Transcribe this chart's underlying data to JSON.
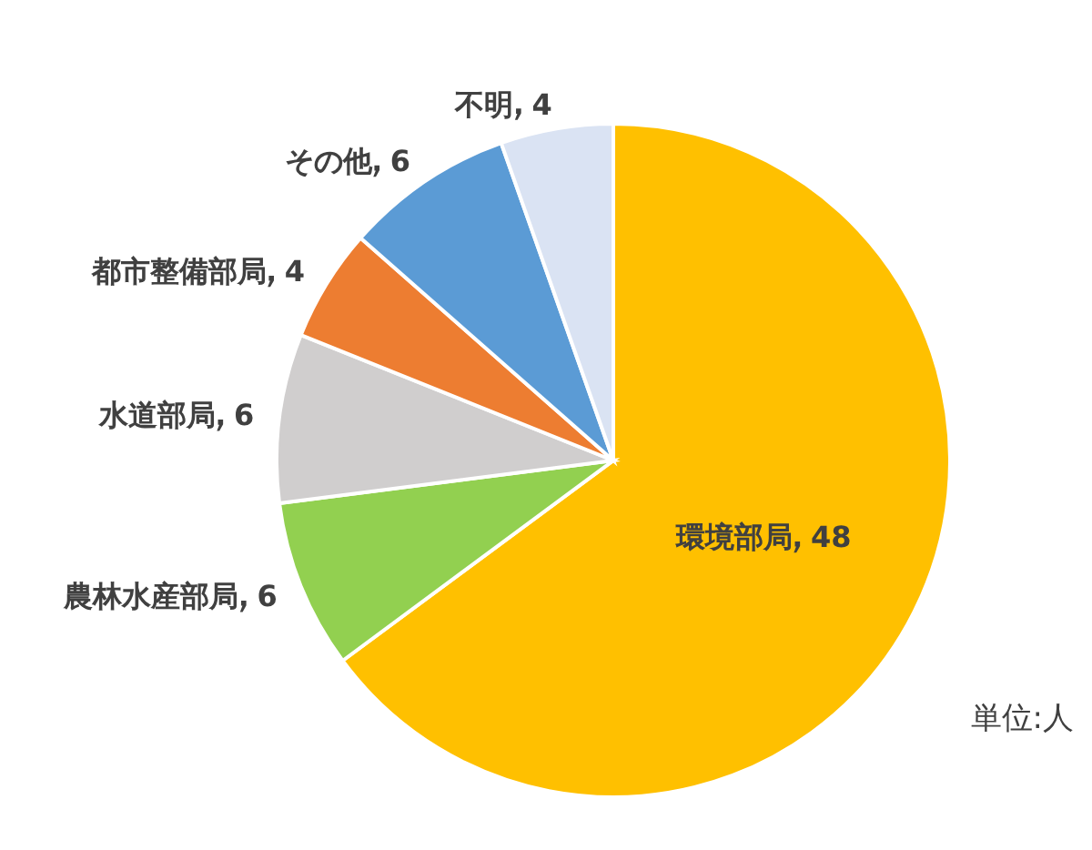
{
  "chart_data": {
    "type": "pie",
    "categories": [
      "環境部局",
      "農林水産部局",
      "水道部局",
      "都市整備部局",
      "その他",
      "不明"
    ],
    "values": [
      48,
      6,
      6,
      4,
      6,
      4
    ],
    "colors": [
      "#ffc000",
      "#92d050",
      "#d0cece",
      "#ed7d31",
      "#5b9bd5",
      "#dae3f3"
    ],
    "data_labels": true,
    "annotations": [
      "単位:人"
    ]
  }
}
